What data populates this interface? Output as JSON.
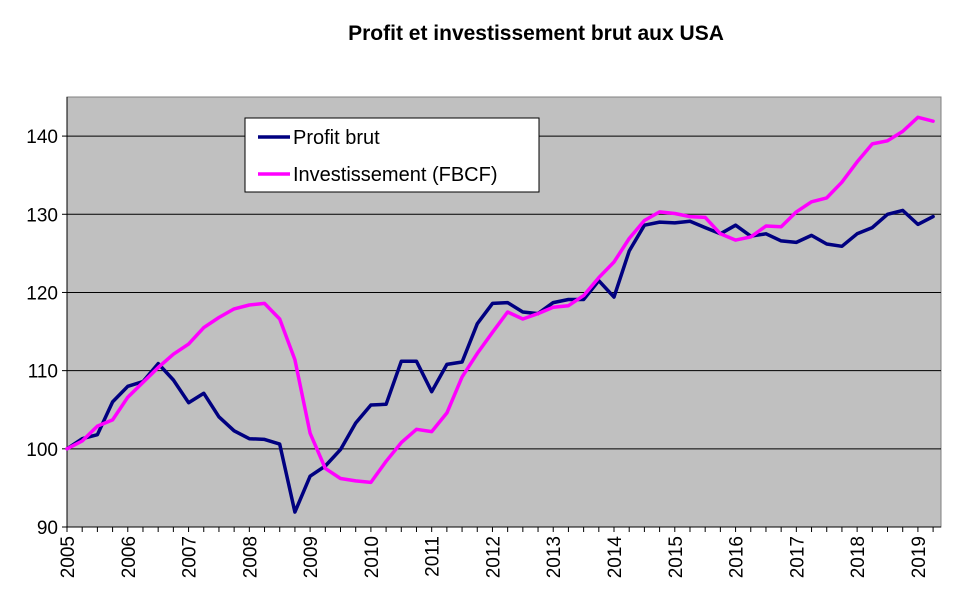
{
  "chart_data": {
    "type": "line",
    "title": "Profit et investissement brut aux USA",
    "xlabel": "",
    "ylabel": "",
    "ylim": [
      90,
      145
    ],
    "yticks": [
      90,
      100,
      110,
      120,
      130,
      140
    ],
    "xlim": [
      2005,
      2019.38
    ],
    "xticks": [
      "2005",
      "2006",
      "2007",
      "2008",
      "2009",
      "2010",
      "2011",
      "2012",
      "2013",
      "2014",
      "2015",
      "2016",
      "2017",
      "2018",
      "2019"
    ],
    "grid": "horizontal",
    "plot_background": "#c0c0c0",
    "legend_position": "top-left",
    "series": [
      {
        "name": "Profit brut",
        "color": "#000080",
        "x": [
          2005.0,
          2005.25,
          2005.5,
          2005.75,
          2006.0,
          2006.25,
          2006.5,
          2006.75,
          2007.0,
          2007.25,
          2007.5,
          2007.75,
          2008.0,
          2008.25,
          2008.5,
          2008.75,
          2009.0,
          2009.25,
          2009.5,
          2009.75,
          2010.0,
          2010.25,
          2010.5,
          2010.75,
          2011.0,
          2011.25,
          2011.5,
          2011.75,
          2012.0,
          2012.25,
          2012.5,
          2012.75,
          2013.0,
          2013.25,
          2013.5,
          2013.75,
          2014.0,
          2014.25,
          2014.5,
          2014.75,
          2015.0,
          2015.25,
          2015.5,
          2015.75,
          2016.0,
          2016.25,
          2016.5,
          2016.75,
          2017.0,
          2017.25,
          2017.5,
          2017.75,
          2018.0,
          2018.25,
          2018.5,
          2018.75,
          2019.0,
          2019.25
        ],
        "values": [
          100.0,
          101.3,
          101.8,
          106.0,
          108.0,
          108.6,
          110.9,
          108.8,
          105.9,
          107.1,
          104.1,
          102.3,
          101.3,
          101.2,
          100.6,
          91.9,
          96.5,
          97.8,
          99.9,
          103.3,
          105.6,
          105.7,
          111.2,
          111.2,
          107.3,
          110.8,
          111.1,
          116.0,
          118.6,
          118.7,
          117.5,
          117.3,
          118.7,
          119.1,
          119.1,
          121.5,
          119.4,
          125.3,
          128.6,
          129.0,
          128.9,
          129.1,
          128.3,
          127.5,
          128.6,
          127.2,
          127.5,
          126.6,
          126.4,
          127.3,
          126.2,
          125.9,
          127.5,
          128.3,
          130.0,
          130.5,
          128.7,
          129.7
        ]
      },
      {
        "name": "Investissement (FBCF)",
        "color": "#ff00ff",
        "x": [
          2005.0,
          2005.25,
          2005.5,
          2005.75,
          2006.0,
          2006.25,
          2006.5,
          2006.75,
          2007.0,
          2007.25,
          2007.5,
          2007.75,
          2008.0,
          2008.25,
          2008.5,
          2008.75,
          2009.0,
          2009.25,
          2009.5,
          2009.75,
          2010.0,
          2010.25,
          2010.5,
          2010.75,
          2011.0,
          2011.25,
          2011.5,
          2011.75,
          2012.0,
          2012.25,
          2012.5,
          2012.75,
          2013.0,
          2013.25,
          2013.5,
          2013.75,
          2014.0,
          2014.25,
          2014.5,
          2014.75,
          2015.0,
          2015.25,
          2015.5,
          2015.75,
          2016.0,
          2016.25,
          2016.5,
          2016.75,
          2017.0,
          2017.25,
          2017.5,
          2017.75,
          2018.0,
          2018.25,
          2018.5,
          2018.75,
          2019.0,
          2019.25
        ],
        "values": [
          100.0,
          101.0,
          102.9,
          103.7,
          106.6,
          108.5,
          110.4,
          112.1,
          113.4,
          115.5,
          116.8,
          117.9,
          118.4,
          118.6,
          116.6,
          111.4,
          102.0,
          97.5,
          96.2,
          95.9,
          95.7,
          98.4,
          100.8,
          102.5,
          102.2,
          104.6,
          109.2,
          112.2,
          114.9,
          117.5,
          116.6,
          117.3,
          118.1,
          118.3,
          119.6,
          121.9,
          123.9,
          126.9,
          129.2,
          130.3,
          130.1,
          129.7,
          129.6,
          127.5,
          126.7,
          127.1,
          128.5,
          128.4,
          130.3,
          131.6,
          132.1,
          134.1,
          136.7,
          139.0,
          139.4,
          140.6,
          142.4,
          141.9
        ]
      }
    ]
  }
}
